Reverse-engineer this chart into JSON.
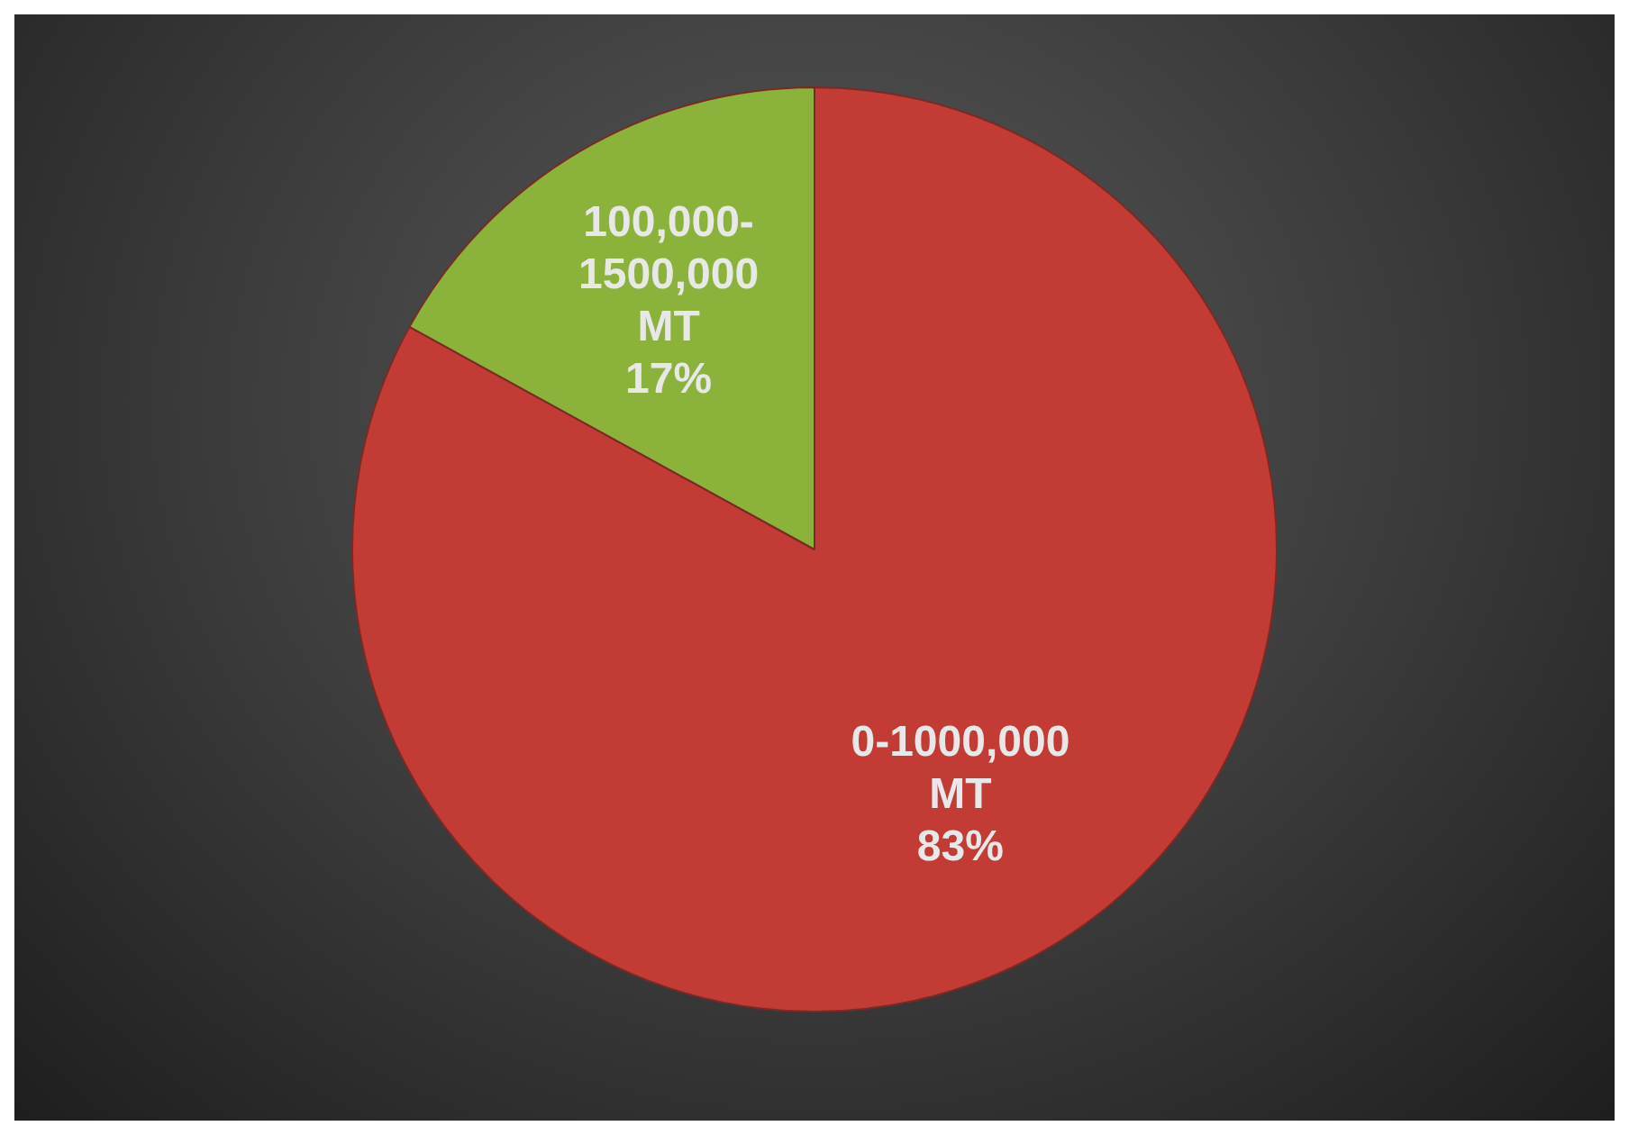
{
  "chart_data": {
    "type": "pie",
    "categories": [
      "0-1000,000 MT",
      "100,000-1500,000 MT"
    ],
    "values": [
      83,
      17
    ],
    "colors": [
      "#c23b35",
      "#8bb23b"
    ],
    "value_labels": [
      "83%",
      "17%"
    ],
    "legend": false
  }
}
